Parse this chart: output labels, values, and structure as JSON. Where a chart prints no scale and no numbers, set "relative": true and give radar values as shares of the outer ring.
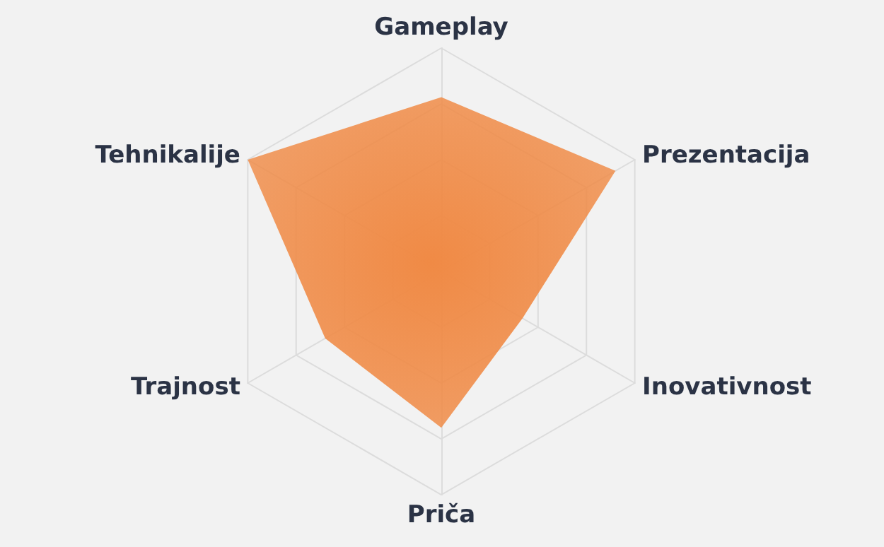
{
  "chart_data": {
    "type": "radar",
    "relative": true,
    "grid": true,
    "categories": [
      "Gameplay",
      "Prezentacija",
      "Inovativnost",
      "Priča",
      "Trajnost",
      "Tehnikalije"
    ],
    "series": [
      {
        "color": "#f08a45",
        "values": [
          0.78,
          0.9,
          0.42,
          0.7,
          0.6,
          1.0
        ]
      }
    ]
  }
}
